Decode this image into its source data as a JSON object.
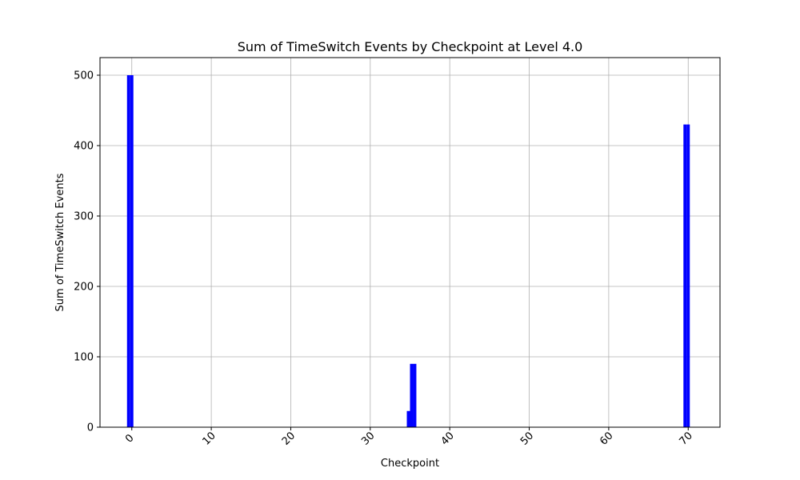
{
  "chart_data": {
    "type": "bar",
    "title": "Sum of TimeSwitch Events by Checkpoint at Level 4.0",
    "xlabel": "Checkpoint",
    "ylabel": "Sum of TimeSwitch Events",
    "xlim": [
      -4,
      74
    ],
    "ylim": [
      0,
      525
    ],
    "xticks": [
      0,
      10,
      20,
      30,
      40,
      50,
      60,
      70
    ],
    "yticks": [
      0,
      100,
      200,
      300,
      400,
      500
    ],
    "xtick_rotation": 45,
    "grid": true,
    "bar_color": "#0000ff",
    "bar_width": 0.4,
    "points": [
      {
        "x": -0.4,
        "value": 500
      },
      {
        "x": 0.0,
        "value": 500
      },
      {
        "x": 34.8,
        "value": 23
      },
      {
        "x": 35.2,
        "value": 90
      },
      {
        "x": 35.6,
        "value": 90
      },
      {
        "x": 69.6,
        "value": 430
      },
      {
        "x": 70.0,
        "value": 430
      }
    ]
  }
}
